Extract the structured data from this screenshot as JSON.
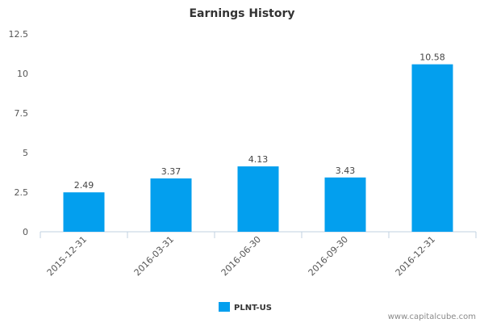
{
  "chart_data": {
    "type": "bar",
    "title": "Earnings History",
    "xlabel": "",
    "ylabel": "",
    "categories": [
      "2015-12-31",
      "2016-03-31",
      "2016-06-30",
      "2016-09-30",
      "2016-12-31"
    ],
    "series": [
      {
        "name": "PLNT-US",
        "color": "#039fee",
        "values": [
          2.49,
          3.37,
          4.13,
          3.43,
          10.58
        ]
      }
    ],
    "data_labels": [
      "2.49",
      "3.37",
      "4.13",
      "3.43",
      "10.58"
    ],
    "yticks": [
      "0",
      "2.5",
      "5",
      "7.5",
      "10",
      "12.5"
    ],
    "ylim": [
      0,
      12.5
    ],
    "grid": false,
    "legend_position": "bottom-center"
  },
  "watermark": "www.capitalcube.com"
}
